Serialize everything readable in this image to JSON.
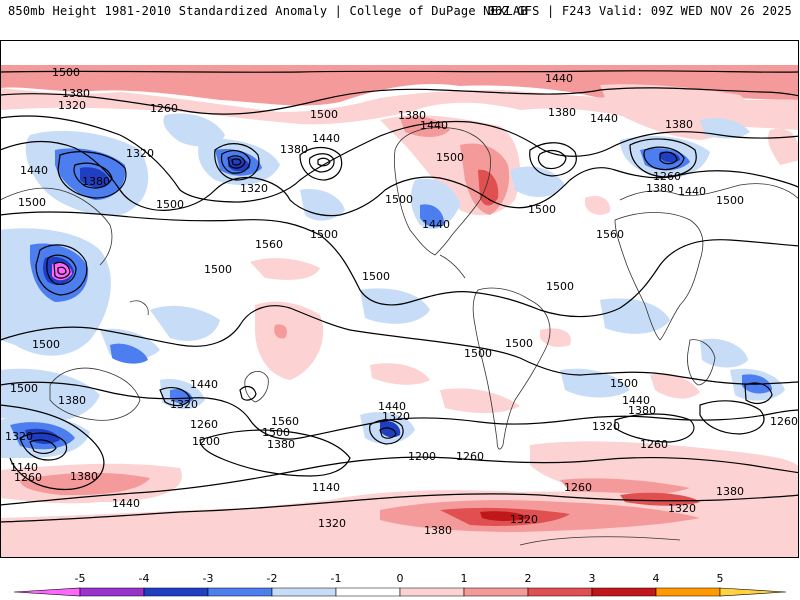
{
  "header": {
    "left": "850mb Height 1981-2010 Standardized Anomaly | College of DuPage NEXLAB",
    "right": "06Z GFS | F243 Valid: 09Z WED NOV 26 2025"
  },
  "colorbar": {
    "ticks": [
      "-5",
      "-4",
      "-3",
      "-2",
      "-1",
      "0",
      "1",
      "2",
      "3",
      "4",
      "5"
    ],
    "colors": [
      "#ff66ff",
      "#9933cc",
      "#1f3ec2",
      "#4d7ef0",
      "#c6dcf7",
      "#ffffff",
      "#fcd2d2",
      "#f59a9a",
      "#e05050",
      "#c01818",
      "#ff9a00",
      "#ffd23f"
    ]
  },
  "contour_labels": [
    {
      "id": "l01",
      "text": "1500"
    },
    {
      "id": "l02",
      "text": "1380"
    },
    {
      "id": "l03",
      "text": "1320"
    },
    {
      "id": "l04",
      "text": "1260"
    },
    {
      "id": "l05",
      "text": "1440"
    },
    {
      "id": "l06",
      "text": "1500"
    },
    {
      "id": "l07",
      "text": "1380"
    },
    {
      "id": "l08",
      "text": "1320"
    },
    {
      "id": "l09",
      "text": "1440"
    },
    {
      "id": "l10",
      "text": "1500"
    },
    {
      "id": "l11",
      "text": "1440"
    },
    {
      "id": "l12",
      "text": "1380"
    },
    {
      "id": "l13",
      "text": "1380"
    },
    {
      "id": "l14",
      "text": "1440"
    },
    {
      "id": "l15",
      "text": "1500"
    },
    {
      "id": "l16",
      "text": "1440"
    },
    {
      "id": "l17",
      "text": "1500"
    },
    {
      "id": "l18",
      "text": "1500"
    },
    {
      "id": "l19",
      "text": "1320"
    },
    {
      "id": "l20",
      "text": "1500"
    },
    {
      "id": "l21",
      "text": "1560"
    },
    {
      "id": "l22",
      "text": "1380"
    },
    {
      "id": "l23",
      "text": "1440"
    },
    {
      "id": "l24",
      "text": "1380"
    },
    {
      "id": "l25",
      "text": "1260"
    },
    {
      "id": "l26",
      "text": "1380"
    },
    {
      "id": "l27",
      "text": "1440"
    },
    {
      "id": "l28",
      "text": "1500"
    },
    {
      "id": "l29",
      "text": "1560"
    },
    {
      "id": "l30",
      "text": "1500"
    },
    {
      "id": "l31",
      "text": "1500"
    },
    {
      "id": "l32",
      "text": "1500"
    },
    {
      "id": "l33",
      "text": "1500"
    },
    {
      "id": "l34",
      "text": "1500"
    },
    {
      "id": "l35",
      "text": "1500"
    },
    {
      "id": "l36",
      "text": "1500"
    },
    {
      "id": "l37",
      "text": "1500"
    },
    {
      "id": "l38",
      "text": "1380"
    },
    {
      "id": "l39",
      "text": "1320"
    },
    {
      "id": "l40",
      "text": "1140"
    },
    {
      "id": "l41",
      "text": "1260"
    },
    {
      "id": "l42",
      "text": "1380"
    },
    {
      "id": "l43",
      "text": "1440"
    },
    {
      "id": "l44",
      "text": "1440"
    },
    {
      "id": "l45",
      "text": "1320"
    },
    {
      "id": "l46",
      "text": "1260"
    },
    {
      "id": "l47",
      "text": "1200"
    },
    {
      "id": "l48",
      "text": "1560"
    },
    {
      "id": "l49",
      "text": "1500"
    },
    {
      "id": "l50",
      "text": "1380"
    },
    {
      "id": "l51",
      "text": "1440"
    },
    {
      "id": "l52",
      "text": "1320"
    },
    {
      "id": "l53",
      "text": "1200"
    },
    {
      "id": "l54",
      "text": "1260"
    },
    {
      "id": "l55",
      "text": "1140"
    },
    {
      "id": "l56",
      "text": "1320"
    },
    {
      "id": "l57",
      "text": "1380"
    },
    {
      "id": "l58",
      "text": "1320"
    },
    {
      "id": "l59",
      "text": "1260"
    },
    {
      "id": "l60",
      "text": "1440"
    },
    {
      "id": "l61",
      "text": "1380"
    },
    {
      "id": "l62",
      "text": "1320"
    },
    {
      "id": "l63",
      "text": "1260"
    },
    {
      "id": "l64",
      "text": "1380"
    },
    {
      "id": "l65",
      "text": "1320"
    },
    {
      "id": "l66",
      "text": "1260"
    },
    {
      "id": "l67",
      "text": "1500"
    }
  ]
}
